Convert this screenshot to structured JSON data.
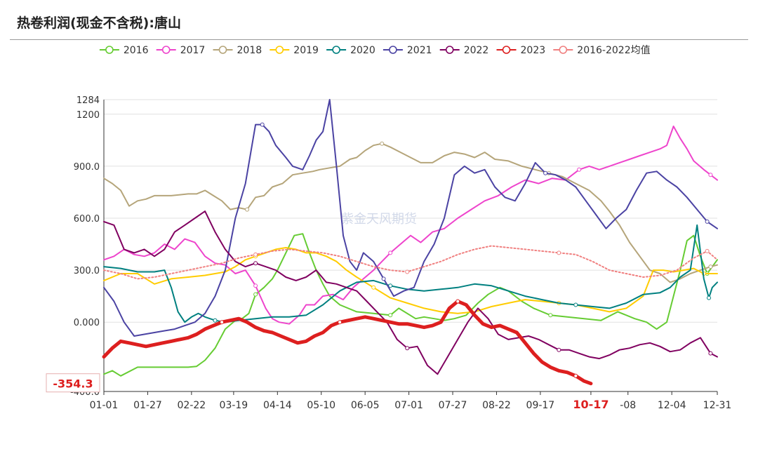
{
  "title": "热卷利润(现金不含税):唐山",
  "watermark": "紫金天风期货",
  "chart_data": {
    "type": "line",
    "title": "热卷利润(现金不含税):唐山",
    "xlabel": "",
    "ylabel": "",
    "x_tick_labels": [
      "01-01",
      "01-27",
      "02-22",
      "03-19",
      "04-14",
      "05-10",
      "06-05",
      "07-01",
      "07-27",
      "08-22",
      "09-17",
      "10-17",
      "-08",
      "12-04",
      "12-31"
    ],
    "x_tick_days": [
      0,
      26,
      52,
      77,
      103,
      129,
      155,
      181,
      207,
      233,
      259,
      289,
      311,
      337,
      364
    ],
    "highlight_tick": "10-17",
    "y_ticks": [
      {
        "value": 1284,
        "label": "1284"
      },
      {
        "value": 1200,
        "label": "1200"
      },
      {
        "value": 900,
        "label": "900.0"
      },
      {
        "value": 600,
        "label": "600.0"
      },
      {
        "value": 300,
        "label": "300.0"
      },
      {
        "value": 0,
        "label": "0.000"
      },
      {
        "value": -400,
        "label": "-400.0"
      }
    ],
    "ylim": [
      -400,
      1284
    ],
    "legend_position": "top",
    "current_value_label": "-354.3",
    "series": [
      {
        "name": "2016",
        "color": "#66cc33",
        "style": "solid",
        "x": [
          0,
          5,
          10,
          20,
          30,
          40,
          50,
          55,
          60,
          66,
          72,
          78,
          82,
          86,
          90,
          95,
          100,
          103,
          108,
          113,
          118,
          122,
          126,
          130,
          134,
          140,
          150,
          160,
          170,
          175,
          185,
          190,
          196,
          202,
          208,
          215,
          222,
          228,
          235,
          240,
          248,
          255,
          265,
          275,
          285,
          295,
          305,
          315,
          322,
          328,
          334,
          338,
          342,
          346,
          350,
          354,
          358,
          364
        ],
        "y": [
          -300,
          -280,
          -310,
          -260,
          -260,
          -260,
          -260,
          -255,
          -220,
          -150,
          -40,
          10,
          20,
          50,
          160,
          200,
          250,
          300,
          400,
          500,
          510,
          400,
          300,
          220,
          150,
          100,
          60,
          50,
          40,
          80,
          20,
          30,
          20,
          10,
          20,
          40,
          110,
          160,
          200,
          180,
          120,
          80,
          40,
          30,
          20,
          10,
          60,
          20,
          0,
          -40,
          0,
          150,
          300,
          470,
          500,
          380,
          280,
          360
        ]
      },
      {
        "name": "2017",
        "color": "#ee44cc",
        "style": "solid",
        "x": [
          0,
          6,
          12,
          18,
          24,
          30,
          36,
          42,
          48,
          54,
          60,
          66,
          72,
          78,
          84,
          90,
          96,
          100,
          104,
          110,
          116,
          120,
          125,
          130,
          136,
          142,
          148,
          154,
          160,
          165,
          170,
          176,
          182,
          188,
          195,
          202,
          210,
          218,
          226,
          234,
          242,
          250,
          258,
          266,
          274,
          282,
          288,
          294,
          300,
          306,
          312,
          318,
          324,
          330,
          334,
          338,
          342,
          346,
          350,
          356,
          360,
          364
        ],
        "y": [
          360,
          380,
          420,
          390,
          380,
          400,
          450,
          420,
          480,
          460,
          380,
          340,
          330,
          280,
          300,
          210,
          80,
          20,
          0,
          -10,
          40,
          100,
          100,
          150,
          160,
          130,
          200,
          250,
          300,
          350,
          400,
          450,
          500,
          460,
          520,
          540,
          600,
          650,
          700,
          730,
          780,
          820,
          800,
          830,
          820,
          880,
          900,
          880,
          900,
          920,
          940,
          960,
          980,
          1000,
          1020,
          1130,
          1060,
          1000,
          930,
          880,
          850,
          820
        ]
      },
      {
        "name": "2018",
        "color": "#b5a57a",
        "style": "solid",
        "x": [
          0,
          5,
          10,
          15,
          20,
          25,
          30,
          40,
          50,
          55,
          60,
          65,
          70,
          75,
          80,
          85,
          90,
          95,
          100,
          106,
          112,
          118,
          124,
          128,
          134,
          140,
          146,
          150,
          155,
          160,
          165,
          170,
          176,
          182,
          188,
          195,
          202,
          208,
          214,
          220,
          226,
          232,
          240,
          248,
          256,
          264,
          272,
          280,
          288,
          295,
          300,
          306,
          312,
          318,
          324,
          330,
          336,
          342,
          348,
          354,
          360,
          364
        ],
        "y": [
          830,
          800,
          760,
          670,
          700,
          710,
          730,
          730,
          740,
          740,
          760,
          730,
          700,
          650,
          660,
          650,
          720,
          730,
          780,
          800,
          850,
          860,
          870,
          880,
          890,
          900,
          940,
          950,
          990,
          1020,
          1030,
          1010,
          980,
          950,
          920,
          920,
          960,
          980,
          970,
          950,
          980,
          940,
          930,
          900,
          880,
          860,
          840,
          800,
          760,
          700,
          640,
          560,
          460,
          380,
          300,
          280,
          230,
          250,
          280,
          300,
          320,
          330
        ]
      },
      {
        "name": "2019",
        "color": "#ffcc00",
        "style": "solid",
        "x": [
          0,
          10,
          20,
          30,
          40,
          50,
          60,
          66,
          72,
          78,
          84,
          90,
          96,
          102,
          108,
          114,
          120,
          126,
          132,
          138,
          144,
          150,
          160,
          170,
          180,
          190,
          200,
          210,
          220,
          230,
          240,
          250,
          260,
          270,
          280,
          290,
          300,
          310,
          320,
          326,
          332,
          338,
          344,
          350,
          356,
          364
        ],
        "y": [
          240,
          280,
          280,
          220,
          250,
          260,
          270,
          280,
          290,
          320,
          360,
          380,
          400,
          420,
          430,
          420,
          400,
          400,
          380,
          350,
          300,
          260,
          200,
          140,
          110,
          80,
          60,
          50,
          60,
          90,
          110,
          130,
          120,
          110,
          100,
          80,
          60,
          80,
          150,
          300,
          300,
          290,
          300,
          310,
          280,
          280
        ]
      },
      {
        "name": "2020",
        "color": "#008080",
        "style": "solid",
        "x": [
          0,
          10,
          20,
          30,
          36,
          40,
          44,
          48,
          52,
          56,
          60,
          66,
          72,
          80,
          90,
          100,
          110,
          120,
          130,
          140,
          150,
          160,
          170,
          180,
          190,
          200,
          210,
          220,
          230,
          240,
          250,
          260,
          270,
          280,
          290,
          300,
          310,
          320,
          330,
          336,
          342,
          348,
          352,
          356,
          359,
          361,
          364
        ],
        "y": [
          320,
          310,
          290,
          290,
          300,
          200,
          60,
          0,
          30,
          50,
          30,
          10,
          0,
          10,
          20,
          30,
          30,
          40,
          100,
          180,
          230,
          240,
          210,
          190,
          180,
          190,
          200,
          220,
          210,
          180,
          150,
          130,
          110,
          100,
          90,
          80,
          110,
          160,
          170,
          200,
          260,
          300,
          560,
          250,
          140,
          200,
          230
        ]
      },
      {
        "name": "2021",
        "color": "#4b43a3",
        "style": "solid",
        "x": [
          0,
          6,
          12,
          18,
          24,
          30,
          36,
          42,
          48,
          54,
          60,
          66,
          72,
          78,
          84,
          90,
          94,
          98,
          102,
          108,
          112,
          118,
          122,
          126,
          130,
          134,
          138,
          142,
          146,
          150,
          154,
          160,
          166,
          172,
          178,
          184,
          190,
          196,
          202,
          208,
          214,
          220,
          226,
          232,
          238,
          244,
          250,
          256,
          262,
          268,
          274,
          280,
          286,
          292,
          298,
          304,
          310,
          316,
          322,
          328,
          334,
          340,
          346,
          352,
          358,
          364
        ],
        "y": [
          200,
          120,
          0,
          -80,
          -70,
          -60,
          -50,
          -40,
          -20,
          0,
          50,
          150,
          300,
          600,
          800,
          1140,
          1140,
          1100,
          1020,
          950,
          900,
          880,
          960,
          1050,
          1100,
          1284,
          900,
          500,
          350,
          300,
          400,
          350,
          250,
          150,
          180,
          200,
          350,
          450,
          600,
          850,
          900,
          860,
          880,
          780,
          720,
          700,
          800,
          920,
          860,
          850,
          820,
          780,
          700,
          620,
          540,
          600,
          650,
          760,
          860,
          870,
          820,
          780,
          720,
          650,
          580,
          540
        ]
      },
      {
        "name": "2022",
        "color": "#800060",
        "style": "solid",
        "x": [
          0,
          6,
          12,
          18,
          24,
          30,
          36,
          42,
          48,
          54,
          60,
          66,
          72,
          78,
          84,
          90,
          96,
          102,
          108,
          114,
          120,
          126,
          132,
          138,
          144,
          150,
          156,
          162,
          168,
          174,
          180,
          186,
          192,
          198,
          204,
          210,
          216,
          222,
          228,
          234,
          240,
          246,
          252,
          258,
          264,
          270,
          276,
          282,
          288,
          294,
          300,
          306,
          312,
          318,
          324,
          330,
          336,
          342,
          348,
          354,
          360,
          364
        ],
        "y": [
          580,
          560,
          420,
          400,
          420,
          380,
          420,
          520,
          560,
          600,
          640,
          520,
          420,
          350,
          320,
          340,
          320,
          300,
          260,
          240,
          260,
          300,
          230,
          220,
          200,
          180,
          120,
          60,
          0,
          -100,
          -150,
          -140,
          -250,
          -300,
          -200,
          -100,
          0,
          80,
          20,
          -70,
          -100,
          -90,
          -80,
          -100,
          -130,
          -160,
          -160,
          -180,
          -200,
          -210,
          -190,
          -160,
          -150,
          -130,
          -120,
          -140,
          -170,
          -160,
          -120,
          -90,
          -180,
          -200
        ]
      },
      {
        "name": "2023",
        "color": "#dd1f1f",
        "style": "bold",
        "x": [
          0,
          5,
          10,
          15,
          20,
          25,
          30,
          35,
          40,
          45,
          50,
          55,
          60,
          65,
          70,
          75,
          80,
          85,
          90,
          95,
          100,
          105,
          110,
          115,
          120,
          125,
          130,
          135,
          140,
          145,
          150,
          155,
          160,
          165,
          170,
          175,
          180,
          185,
          190,
          195,
          200,
          205,
          210,
          215,
          220,
          225,
          230,
          235,
          240,
          245,
          250,
          255,
          260,
          265,
          270,
          275,
          280,
          285,
          289
        ],
        "y": [
          -200,
          -150,
          -110,
          -120,
          -130,
          -140,
          -130,
          -120,
          -110,
          -100,
          -90,
          -70,
          -40,
          -20,
          0,
          10,
          20,
          0,
          -30,
          -50,
          -60,
          -80,
          -100,
          -120,
          -110,
          -80,
          -60,
          -20,
          0,
          10,
          20,
          30,
          20,
          10,
          0,
          -10,
          -10,
          -20,
          -30,
          -20,
          0,
          80,
          120,
          100,
          40,
          -10,
          -30,
          -20,
          -40,
          -60,
          -120,
          -180,
          -230,
          -260,
          -280,
          -290,
          -310,
          -340,
          -354.3
        ]
      },
      {
        "name": "2016-2022均值",
        "color": "#f08080",
        "style": "dotted",
        "x": [
          0,
          10,
          20,
          30,
          40,
          50,
          60,
          70,
          80,
          90,
          100,
          110,
          120,
          130,
          140,
          150,
          160,
          170,
          180,
          190,
          200,
          210,
          220,
          230,
          240,
          250,
          260,
          270,
          280,
          290,
          300,
          310,
          320,
          330,
          340,
          350,
          358,
          364
        ],
        "y": [
          300,
          280,
          250,
          260,
          280,
          300,
          320,
          340,
          370,
          390,
          410,
          420,
          410,
          400,
          380,
          350,
          320,
          300,
          290,
          320,
          350,
          390,
          420,
          440,
          430,
          420,
          410,
          400,
          390,
          350,
          300,
          280,
          260,
          270,
          300,
          370,
          410,
          360
        ]
      }
    ]
  }
}
